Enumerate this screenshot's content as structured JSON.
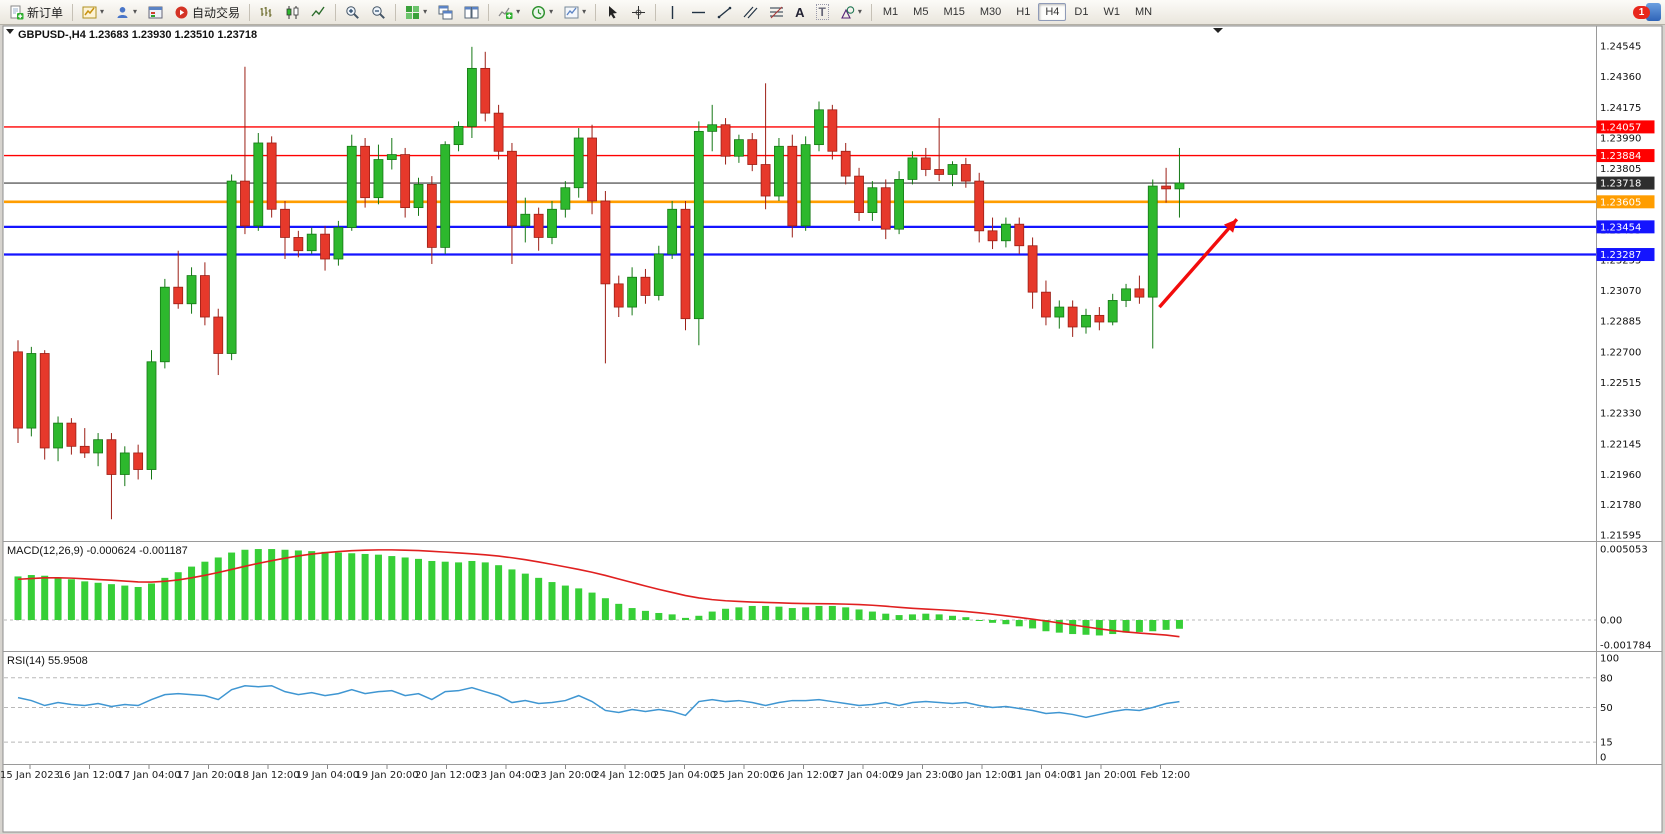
{
  "toolbar": {
    "new_order_label": "新订单",
    "autotrading_label": "自动交易",
    "timeframes": [
      "M1",
      "M5",
      "M15",
      "M30",
      "H1",
      "H4",
      "D1",
      "W1",
      "MN"
    ],
    "active_timeframe": "H4",
    "notification_count": "1",
    "text_tool_label": "A",
    "label_tool_label": "T"
  },
  "chart_header": {
    "title": "GBPUSD-,H4 1.23683 1.23930 1.23510 1.23718",
    "symbol": "GBPUSD-",
    "timeframe": "H4"
  },
  "chart_data": [
    {
      "type": "candlestick",
      "symbol": "GBPUSD-",
      "timeframe": "H4",
      "current_bar": {
        "open": 1.23683,
        "high": 1.2393,
        "low": 1.2351,
        "close": 1.23718
      },
      "ylim": [
        1.21595,
        1.24545
      ],
      "y_axis_labels": [
        "1.24545",
        "1.24360",
        "1.24175",
        "1.23990",
        "1.23805",
        "1.23620",
        "1.23435",
        "1.23255",
        "1.23070",
        "1.22885",
        "1.22700",
        "1.22515",
        "1.22330",
        "1.22145",
        "1.21960",
        "1.21780",
        "1.21595"
      ],
      "x_axis_labels": [
        "15 Jan 2023",
        "16 Jan 12:00",
        "17 Jan 04:00",
        "17 Jan 20:00",
        "18 Jan 12:00",
        "19 Jan 04:00",
        "19 Jan 20:00",
        "20 Jan 12:00",
        "23 Jan 04:00",
        "23 Jan 20:00",
        "24 Jan 12:00",
        "25 Jan 04:00",
        "25 Jan 20:00",
        "26 Jan 12:00",
        "27 Jan 04:00",
        "29 Jan 23:00",
        "30 Jan 12:00",
        "31 Jan 04:00",
        "31 Jan 20:00",
        "1 Feb 12:00"
      ],
      "hlines": [
        {
          "price": 1.24057,
          "label": "1.24057",
          "color": "#ff0000",
          "width": 1.4,
          "role": "resistance"
        },
        {
          "price": 1.23884,
          "label": "1.23884",
          "color": "#ff0000",
          "width": 1.4,
          "role": "resistance"
        },
        {
          "price": 1.23718,
          "label": "1.23718",
          "color": "#3a3a3a",
          "width": 1.1,
          "role": "bid"
        },
        {
          "price": 1.23605,
          "label": "1.23605",
          "color": "#ff9d00",
          "width": 2.6,
          "role": "pivot"
        },
        {
          "price": 1.23454,
          "label": "1.23454",
          "color": "#1414ff",
          "width": 2.3,
          "role": "support"
        },
        {
          "price": 1.23287,
          "label": "1.23287",
          "color": "#1414ff",
          "width": 2.3,
          "role": "support"
        }
      ],
      "arrow_annotation": {
        "from_index": 85.5,
        "from_price": 1.2297,
        "to_index": 91.3,
        "to_price": 1.235,
        "color": "#f20c0c"
      },
      "colors": {
        "up": "#2db82d",
        "up_border": "#157815",
        "down": "#e6392b",
        "down_border": "#9c1f16",
        "background": "#ffffff"
      },
      "candles_ohlc": [
        [
          1.227,
          1.2277,
          1.2215,
          1.2224
        ],
        [
          1.2224,
          1.2273,
          1.2219,
          1.2269
        ],
        [
          1.2269,
          1.2271,
          1.2205,
          1.2212
        ],
        [
          1.2212,
          1.2231,
          1.2204,
          1.2227
        ],
        [
          1.2227,
          1.223,
          1.2208,
          1.2213
        ],
        [
          1.2213,
          1.2224,
          1.2206,
          1.2209
        ],
        [
          1.2209,
          1.2221,
          1.2201,
          1.2217
        ],
        [
          1.2217,
          1.2221,
          1.2169,
          1.2196
        ],
        [
          1.2196,
          1.2213,
          1.2189,
          1.2209
        ],
        [
          1.2209,
          1.2214,
          1.2193,
          1.2199
        ],
        [
          1.2199,
          1.2271,
          1.2193,
          1.2264
        ],
        [
          1.2264,
          1.2314,
          1.226,
          1.2309
        ],
        [
          1.2309,
          1.2331,
          1.2296,
          1.2299
        ],
        [
          1.2299,
          1.2321,
          1.2293,
          1.2316
        ],
        [
          1.2316,
          1.2324,
          1.2286,
          1.2291
        ],
        [
          1.2291,
          1.2296,
          1.2256,
          1.2269
        ],
        [
          1.2269,
          1.2377,
          1.2265,
          1.2373
        ],
        [
          1.2373,
          1.2442,
          1.2341,
          1.2346
        ],
        [
          1.2346,
          1.2402,
          1.2343,
          1.2396
        ],
        [
          1.2396,
          1.24,
          1.2351,
          1.2356
        ],
        [
          1.2356,
          1.2361,
          1.2326,
          1.2339
        ],
        [
          1.2339,
          1.2343,
          1.2327,
          1.2331
        ],
        [
          1.2331,
          1.2345,
          1.2329,
          1.2341
        ],
        [
          1.2341,
          1.2346,
          1.2319,
          1.2326
        ],
        [
          1.2326,
          1.2349,
          1.2322,
          1.2345
        ],
        [
          1.2345,
          1.2401,
          1.2343,
          1.2394
        ],
        [
          1.2394,
          1.2399,
          1.2357,
          1.2363
        ],
        [
          1.2363,
          1.2395,
          1.2359,
          1.2386
        ],
        [
          1.2386,
          1.2399,
          1.238,
          1.2389
        ],
        [
          1.2389,
          1.2393,
          1.2351,
          1.2357
        ],
        [
          1.2357,
          1.2375,
          1.2352,
          1.2371
        ],
        [
          1.2371,
          1.2376,
          1.2323,
          1.2333
        ],
        [
          1.2333,
          1.2397,
          1.2329,
          1.2395
        ],
        [
          1.2395,
          1.2409,
          1.2391,
          1.2406
        ],
        [
          1.2406,
          1.2454,
          1.2399,
          1.2441
        ],
        [
          1.2441,
          1.2451,
          1.2409,
          1.2414
        ],
        [
          1.2414,
          1.2419,
          1.2386,
          1.2391
        ],
        [
          1.2391,
          1.2396,
          1.2323,
          1.2346
        ],
        [
          1.2346,
          1.2363,
          1.2336,
          1.2353
        ],
        [
          1.2353,
          1.2357,
          1.2331,
          1.2339
        ],
        [
          1.2339,
          1.2361,
          1.2335,
          1.2356
        ],
        [
          1.2356,
          1.2373,
          1.2351,
          1.2369
        ],
        [
          1.2369,
          1.2405,
          1.2363,
          1.2399
        ],
        [
          1.2399,
          1.2407,
          1.2353,
          1.2361
        ],
        [
          1.2361,
          1.2367,
          1.2263,
          1.2311
        ],
        [
          1.2311,
          1.2316,
          1.2291,
          1.2297
        ],
        [
          1.2297,
          1.2321,
          1.2292,
          1.2315
        ],
        [
          1.2315,
          1.232,
          1.2299,
          1.2304
        ],
        [
          1.2304,
          1.2334,
          1.2301,
          1.2329
        ],
        [
          1.2329,
          1.2361,
          1.2326,
          1.2356
        ],
        [
          1.2356,
          1.2361,
          1.2283,
          1.229
        ],
        [
          1.229,
          1.2409,
          1.2274,
          1.2403
        ],
        [
          1.2403,
          1.2419,
          1.2391,
          1.2407
        ],
        [
          1.2407,
          1.2411,
          1.2383,
          1.2388
        ],
        [
          1.2388,
          1.2401,
          1.2384,
          1.2398
        ],
        [
          1.2398,
          1.2402,
          1.2379,
          1.2383
        ],
        [
          1.2383,
          1.2432,
          1.2356,
          1.2364
        ],
        [
          1.2364,
          1.2399,
          1.2361,
          1.2394
        ],
        [
          1.2394,
          1.2401,
          1.2339,
          1.2346
        ],
        [
          1.2346,
          1.24,
          1.2343,
          1.2395
        ],
        [
          1.2395,
          1.2421,
          1.2391,
          1.2416
        ],
        [
          1.2416,
          1.2419,
          1.2386,
          1.2391
        ],
        [
          1.2391,
          1.2396,
          1.2371,
          1.2376
        ],
        [
          1.2376,
          1.2381,
          1.2349,
          1.2354
        ],
        [
          1.2354,
          1.2373,
          1.2349,
          1.2369
        ],
        [
          1.2369,
          1.2374,
          1.2338,
          1.2344
        ],
        [
          1.2344,
          1.2379,
          1.2341,
          1.2374
        ],
        [
          1.2374,
          1.2391,
          1.2371,
          1.2387
        ],
        [
          1.2387,
          1.2393,
          1.2376,
          1.238
        ],
        [
          1.238,
          1.2411,
          1.2373,
          1.2377
        ],
        [
          1.2377,
          1.2385,
          1.237,
          1.2383
        ],
        [
          1.2383,
          1.2387,
          1.2369,
          1.2373
        ],
        [
          1.2373,
          1.2378,
          1.2336,
          1.2343
        ],
        [
          1.2343,
          1.2351,
          1.2332,
          1.2337
        ],
        [
          1.2337,
          1.2351,
          1.2333,
          1.2347
        ],
        [
          1.2347,
          1.2351,
          1.2329,
          1.2334
        ],
        [
          1.2334,
          1.2339,
          1.2296,
          1.2306
        ],
        [
          1.2306,
          1.2313,
          1.2286,
          1.2291
        ],
        [
          1.2291,
          1.2301,
          1.2284,
          1.2297
        ],
        [
          1.2297,
          1.2301,
          1.2279,
          1.2285
        ],
        [
          1.2285,
          1.2296,
          1.2281,
          1.2292
        ],
        [
          1.2292,
          1.2297,
          1.2283,
          1.2288
        ],
        [
          1.2288,
          1.2305,
          1.2286,
          1.2301
        ],
        [
          1.2301,
          1.2311,
          1.2297,
          1.2308
        ],
        [
          1.2308,
          1.2316,
          1.2299,
          1.2303
        ],
        [
          1.2303,
          1.2374,
          1.2272,
          1.237
        ],
        [
          1.237,
          1.2381,
          1.236,
          1.23683
        ],
        [
          1.23683,
          1.2393,
          1.2351,
          1.23718
        ]
      ]
    },
    {
      "type": "macd-histogram",
      "label": "MACD(12,26,9) -0.000624 -0.001187",
      "macd_value": -0.000624,
      "signal_value": -0.001187,
      "ylim": [
        -0.001784,
        0.005053
      ],
      "y_axis_labels": [
        "0.005053",
        "0.00",
        "-0.001784"
      ],
      "colors": {
        "histogram": "#37cf37",
        "signal": "#e02020"
      },
      "histogram": [
        0.0031,
        0.0032,
        0.00315,
        0.003,
        0.0029,
        0.00275,
        0.00265,
        0.00255,
        0.00245,
        0.00235,
        0.0026,
        0.003,
        0.0034,
        0.0038,
        0.00415,
        0.00445,
        0.0048,
        0.005,
        0.00505,
        0.00505,
        0.005,
        0.00495,
        0.0049,
        0.00485,
        0.0048,
        0.00475,
        0.0047,
        0.00465,
        0.00455,
        0.00445,
        0.00435,
        0.0042,
        0.00415,
        0.0041,
        0.0042,
        0.0041,
        0.0039,
        0.0036,
        0.0033,
        0.003,
        0.0027,
        0.00245,
        0.00225,
        0.00195,
        0.00155,
        0.00115,
        0.00085,
        0.00065,
        0.0005,
        0.0004,
        0.00015,
        0.0003,
        0.0006,
        0.0008,
        0.0009,
        0.001,
        0.001,
        0.00095,
        0.00085,
        0.0009,
        0.001,
        0.001,
        0.0009,
        0.00075,
        0.0006,
        0.00045,
        0.00035,
        0.0004,
        0.00045,
        0.0004,
        0.0003,
        0.0002,
        0,
        -0.0002,
        -0.0003,
        -0.00045,
        -0.0006,
        -0.0008,
        -0.0009,
        -0.001,
        -0.00105,
        -0.0011,
        -0.001,
        -0.0009,
        -0.00085,
        -0.0008,
        -0.0007,
        -0.000624
      ],
      "signal": [
        0.0029,
        0.00295,
        0.003,
        0.003,
        0.00298,
        0.00293,
        0.00288,
        0.00283,
        0.00277,
        0.00271,
        0.0027,
        0.00275,
        0.00285,
        0.003,
        0.00318,
        0.00338,
        0.0036,
        0.00382,
        0.00403,
        0.00422,
        0.0044,
        0.00456,
        0.00469,
        0.00479,
        0.00487,
        0.00493,
        0.00497,
        0.00499,
        0.00499,
        0.00497,
        0.00494,
        0.00489,
        0.00483,
        0.00477,
        0.00471,
        0.00464,
        0.00455,
        0.00443,
        0.00429,
        0.00413,
        0.00396,
        0.00378,
        0.0036,
        0.0034,
        0.00317,
        0.00292,
        0.00267,
        0.00242,
        0.00218,
        0.00196,
        0.00174,
        0.00157,
        0.00145,
        0.00137,
        0.00132,
        0.00128,
        0.00125,
        0.00122,
        0.00119,
        0.00117,
        0.00116,
        0.00115,
        0.00113,
        0.0011,
        0.00105,
        0.00098,
        0.0009,
        0.00083,
        0.00078,
        0.00073,
        0.00067,
        0.0006,
        0.00051,
        0.00041,
        0.0003,
        0.00018,
        6e-05,
        -7e-05,
        -0.00021,
        -0.00035,
        -0.00049,
        -0.00063,
        -0.00075,
        -0.00085,
        -0.00093,
        -0.001,
        -0.00107,
        -0.001187
      ]
    },
    {
      "type": "rsi-line",
      "label": "RSI(14) 55.9508",
      "value": 55.9508,
      "period": 14,
      "ylim": [
        0,
        100
      ],
      "levels": [
        80,
        50,
        15
      ],
      "y_axis_labels": [
        "100",
        "80",
        "50",
        "15",
        "0"
      ],
      "colors": {
        "line": "#3f96d2"
      },
      "values": [
        60,
        57,
        52,
        55,
        53,
        52,
        54,
        51,
        53,
        52,
        58,
        63,
        64,
        63,
        62,
        58,
        68,
        72,
        71,
        72,
        66,
        63,
        65,
        62,
        64,
        68,
        64,
        66,
        67,
        62,
        64,
        58,
        66,
        67,
        70,
        66,
        62,
        55,
        57,
        54,
        55,
        57,
        62,
        56,
        47,
        45,
        48,
        46,
        48,
        46,
        42,
        56,
        58,
        56,
        57,
        55,
        52,
        55,
        57,
        57,
        58,
        56,
        54,
        52,
        53,
        55,
        52,
        55,
        56,
        55,
        54,
        55,
        52,
        50,
        51,
        49,
        47,
        44,
        45,
        43,
        40,
        43,
        46,
        48,
        47,
        50,
        54,
        55.95
      ]
    }
  ]
}
